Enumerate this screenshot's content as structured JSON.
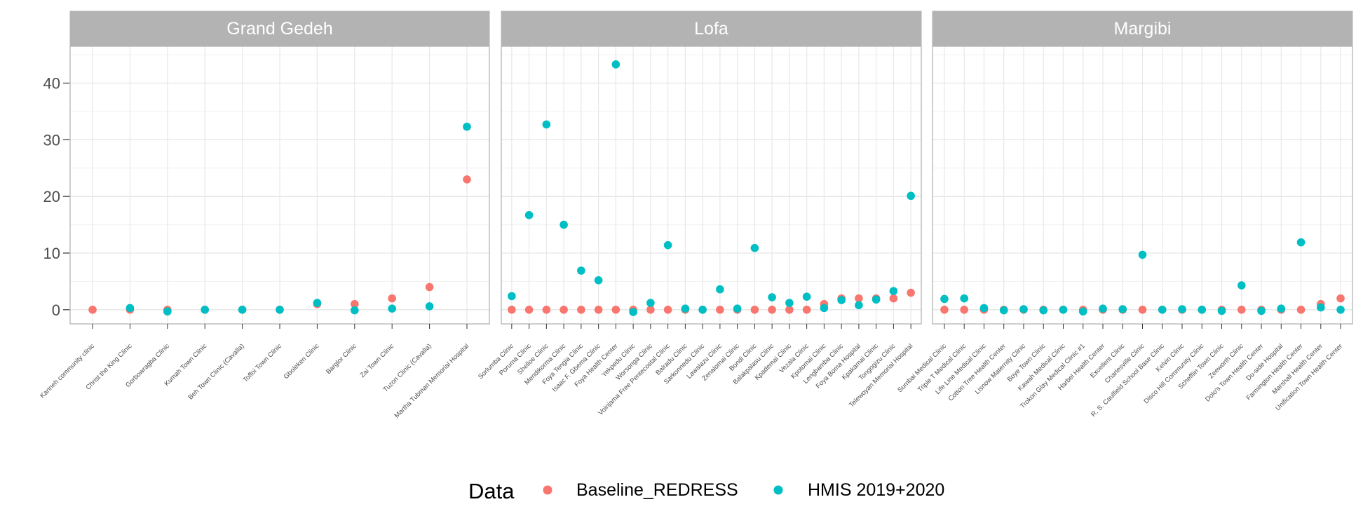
{
  "chart_data": {
    "type": "scatter",
    "ylim": [
      -2.5,
      46.5
    ],
    "yticks": [
      0,
      10,
      20,
      30,
      40
    ],
    "grid": true,
    "legend_position": "bottom",
    "legend": {
      "title": "Data",
      "entries": [
        {
          "name": "Baseline_REDRESS",
          "color": "#F8766D"
        },
        {
          "name": "HMIS 2019+2020",
          "color": "#00BFC4"
        }
      ]
    },
    "facets": [
      {
        "title": "Grand Gedeh",
        "categories": [
          "Kanneh community clinic",
          "Christ the King Clinic",
          "Gorbowragba Clinic",
          "Kumah Town Clinic",
          "Beh Town Clinic (Cavalla)",
          "Toffoi Town Clinic",
          "Gboleken Clinic",
          "Barglor Clinic",
          "Zai Town Clinic",
          "Tuzon Clinic (Cavalla)",
          "Martha Tubman Memorial Hospital"
        ],
        "series": [
          {
            "name": "Baseline_REDRESS",
            "values": [
              0,
              0,
              0,
              0,
              0,
              0,
              1,
              1,
              2,
              4,
              23
            ]
          },
          {
            "name": "HMIS 2019+2020",
            "values": [
              null,
              0.3,
              -0.3,
              0,
              0,
              0,
              1.2,
              -0.1,
              0.2,
              0.6,
              32.3
            ]
          }
        ]
      },
      {
        "title": "Lofa",
        "categories": [
          "Sorlumba Clinic",
          "Poruma Clinic",
          "Shelloe Clinic",
          "Mendikorma Clinic",
          "Foya Tengia Clinic",
          "Isaac F. Gbema Clinic",
          "Foya Health Center",
          "Yekpedu Clinic",
          "Worsonga Clinic",
          "Voinjama Free Pentecostal Clinic",
          "Balradu Clinic",
          "Sarkonnedu Clinic",
          "Lawalazu Clinic",
          "Zenalomai Clinic",
          "Bondi Clinic",
          "Balakpalasu Clinic",
          "Kpademai Clinic",
          "Vezala Clinic",
          "Kpotomai Clinic",
          "Lengbamba Clinic",
          "Foya Boma Hospital",
          "Kpakamai Clinic",
          "Tongogizu Clinic",
          "Telewoyan Memorial Hospital"
        ],
        "series": [
          {
            "name": "Baseline_REDRESS",
            "values": [
              0,
              0,
              0,
              0,
              0,
              0,
              0,
              0,
              0,
              0,
              0,
              0,
              0,
              0,
              0,
              0,
              0,
              0,
              1,
              2,
              2,
              2,
              2,
              3
            ]
          },
          {
            "name": "HMIS 2019+2020",
            "values": [
              2.4,
              16.7,
              32.7,
              15,
              6.9,
              5.2,
              43.3,
              -0.4,
              1.2,
              11.4,
              0.2,
              0,
              3.6,
              0.2,
              10.9,
              2.2,
              1.2,
              2.3,
              0.3,
              1.7,
              0.8,
              1.8,
              3.3,
              20.1
            ]
          }
        ]
      },
      {
        "title": "Margibi",
        "categories": [
          "Sumbai Medical Clinic",
          "Triple T Medical Clinic",
          "Life Line Medical Clinic",
          "Cotton Tree Health Center",
          "Lisnow Maternity Clinic",
          "Boye Town Clinic",
          "Kawah Medical Clinic",
          "Trokon Glay Medical Clinic #1",
          "Harbel Health Center",
          "Excellent Clinic",
          "Charlesville Clinic",
          "R. S. Caulfield School Base Clinic",
          "Kelvin Clinic",
          "Disco Hill Community Clinic",
          "Scheffiin Town Clinic",
          "Zeeworth Clinic",
          "Dolo's Town Health Center",
          "Du-side Hospital",
          "Farmington Health Center",
          "Marshall Health Center",
          "Unification Town Health Center"
        ],
        "series": [
          {
            "name": "Baseline_REDRESS",
            "values": [
              0,
              0,
              0,
              0,
              0,
              0,
              0,
              0,
              0,
              0,
              0,
              0,
              0,
              0,
              0,
              0,
              0,
              0,
              0,
              1,
              2
            ]
          },
          {
            "name": "HMIS 2019+2020",
            "values": [
              1.9,
              2,
              0.3,
              -0.1,
              0.1,
              -0.1,
              0,
              -0.3,
              0.2,
              0.1,
              9.7,
              0,
              0.1,
              0,
              -0.2,
              4.3,
              -0.2,
              0.2,
              11.9,
              0.4,
              0
            ]
          }
        ]
      }
    ]
  }
}
